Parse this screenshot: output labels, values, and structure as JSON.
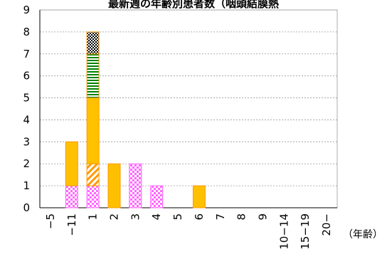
{
  "chart_data": {
    "type": "bar",
    "stacked": true,
    "title": "最新週の年齢別患者数（咽頭結膜熱",
    "xlabel_unit": "（年齢）",
    "categories": [
      "-5",
      "-11",
      "1",
      "2",
      "3",
      "4",
      "5",
      "6",
      "7",
      "8",
      "9",
      "10-14",
      "15-19",
      "20-"
    ],
    "ylim": [
      0,
      9
    ],
    "yticks": [
      0,
      1,
      2,
      3,
      4,
      5,
      6,
      7,
      8,
      9
    ],
    "grid": true,
    "series": [
      {
        "values": [
          0,
          1,
          1,
          0,
          2,
          1,
          0,
          0,
          0,
          0,
          0,
          0,
          0,
          0
        ],
        "pattern": "checker-pink",
        "color": "#ff66ff"
      },
      {
        "values": [
          0,
          0,
          1,
          0,
          0,
          0,
          0,
          0,
          0,
          0,
          0,
          0,
          0,
          0
        ],
        "pattern": "diagonal-orange",
        "color": "#ff9900"
      },
      {
        "values": [
          0,
          2,
          3,
          2,
          0,
          0,
          0,
          1,
          0,
          0,
          0,
          0,
          0,
          0
        ],
        "pattern": "solid-gold",
        "color": "#ffc000"
      },
      {
        "values": [
          0,
          0,
          2,
          0,
          0,
          0,
          0,
          0,
          0,
          0,
          0,
          0,
          0,
          0
        ],
        "pattern": "horizontal-green",
        "color": "#008000"
      },
      {
        "values": [
          0,
          0,
          1,
          0,
          0,
          0,
          0,
          0,
          0,
          0,
          0,
          0,
          0,
          0
        ],
        "pattern": "checker-black",
        "color": "#000000"
      }
    ]
  }
}
